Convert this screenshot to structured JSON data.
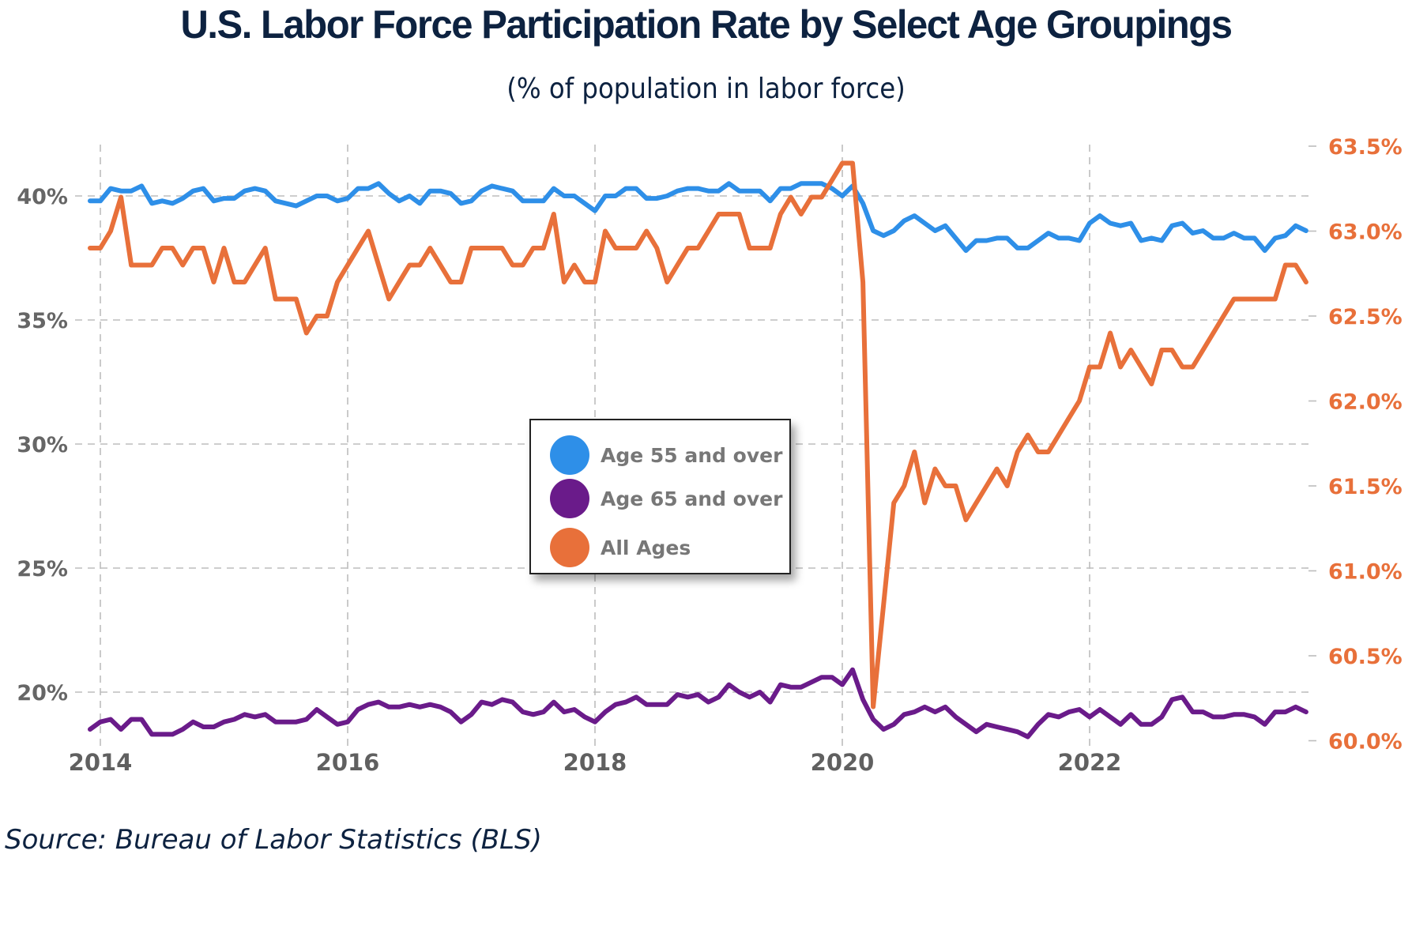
{
  "header": {
    "title": "U.S. Labor Force Participation Rate by Select Age Groupings",
    "subtitle": "(% of population in labor force)"
  },
  "footer": {
    "source": "Source: Bureau of Labor Statistics (BLS)"
  },
  "legend": [
    {
      "label": "Age 55 and over",
      "color": "#2e8fe8"
    },
    {
      "label": "Age 65 and over",
      "color": "#6a1b8a"
    },
    {
      "label": "All Ages",
      "color": "#e8703a"
    }
  ],
  "chart_data": {
    "type": "line",
    "title": "U.S. Labor Force Participation Rate by Select Age Groupings",
    "subtitle": "(% of population in labor force)",
    "xlabel": "",
    "frequency": "monthly",
    "x_start": "2013-12",
    "x_end": "2023-10",
    "x_ticks": [
      "2014",
      "2016",
      "2018",
      "2020",
      "2022"
    ],
    "y_left": {
      "label": "",
      "ticks": [
        "20%",
        "25%",
        "30%",
        "35%",
        "40%"
      ],
      "tick_values": [
        20,
        25,
        30,
        35,
        40
      ],
      "range": [
        17.8,
        42.3
      ],
      "series": [
        "Age 55 and over",
        "Age 65 and over"
      ]
    },
    "y_right": {
      "label": "",
      "ticks": [
        "60.0%",
        "60.5%",
        "61.0%",
        "61.5%",
        "62.0%",
        "62.5%",
        "63.0%",
        "63.5%"
      ],
      "tick_values": [
        60.0,
        60.5,
        61.0,
        61.5,
        62.0,
        62.5,
        63.0,
        63.5
      ],
      "range": [
        59.9,
        63.6
      ],
      "series": [
        "All Ages"
      ]
    },
    "grid": true,
    "legend_position": "center",
    "series": [
      {
        "name": "Age 55 and over",
        "axis": "left",
        "color": "#2e8fe8",
        "values": [
          39.8,
          39.8,
          40.3,
          40.2,
          40.2,
          40.4,
          39.7,
          39.8,
          39.7,
          39.9,
          40.2,
          40.3,
          39.8,
          39.9,
          39.9,
          40.2,
          40.3,
          40.2,
          39.8,
          39.7,
          39.6,
          39.8,
          40.0,
          40.0,
          39.8,
          39.9,
          40.3,
          40.3,
          40.5,
          40.1,
          39.8,
          40.0,
          39.7,
          40.2,
          40.2,
          40.1,
          39.7,
          39.8,
          40.2,
          40.4,
          40.3,
          40.2,
          39.8,
          39.8,
          39.8,
          40.3,
          40.0,
          40.0,
          39.7,
          39.4,
          40.0,
          40.0,
          40.3,
          40.3,
          39.9,
          39.9,
          40.0,
          40.2,
          40.3,
          40.3,
          40.2,
          40.2,
          40.5,
          40.2,
          40.2,
          40.2,
          39.8,
          40.3,
          40.3,
          40.5,
          40.5,
          40.5,
          40.3,
          40.0,
          40.4,
          39.7,
          38.6,
          38.4,
          38.6,
          39.0,
          39.2,
          38.9,
          38.6,
          38.8,
          38.3,
          37.8,
          38.2,
          38.2,
          38.3,
          38.3,
          37.9,
          37.9,
          38.2,
          38.5,
          38.3,
          38.3,
          38.2,
          38.9,
          39.2,
          38.9,
          38.8,
          38.9,
          38.2,
          38.3,
          38.2,
          38.8,
          38.9,
          38.5,
          38.6,
          38.3,
          38.3,
          38.5,
          38.3,
          38.3,
          37.8,
          38.3,
          38.4,
          38.8,
          38.6
        ]
      },
      {
        "name": "Age 65 and over",
        "axis": "left",
        "color": "#6a1b8a",
        "values": [
          18.5,
          18.8,
          18.9,
          18.5,
          18.9,
          18.9,
          18.3,
          18.3,
          18.3,
          18.5,
          18.8,
          18.6,
          18.6,
          18.8,
          18.9,
          19.1,
          19.0,
          19.1,
          18.8,
          18.8,
          18.8,
          18.9,
          19.3,
          19.0,
          18.7,
          18.8,
          19.3,
          19.5,
          19.6,
          19.4,
          19.4,
          19.5,
          19.4,
          19.5,
          19.4,
          19.2,
          18.8,
          19.1,
          19.6,
          19.5,
          19.7,
          19.6,
          19.2,
          19.1,
          19.2,
          19.6,
          19.2,
          19.3,
          19.0,
          18.8,
          19.2,
          19.5,
          19.6,
          19.8,
          19.5,
          19.5,
          19.5,
          19.9,
          19.8,
          19.9,
          19.6,
          19.8,
          20.3,
          20.0,
          19.8,
          20.0,
          19.6,
          20.3,
          20.2,
          20.2,
          20.4,
          20.6,
          20.6,
          20.3,
          20.9,
          19.7,
          18.9,
          18.5,
          18.7,
          19.1,
          19.2,
          19.4,
          19.2,
          19.4,
          19.0,
          18.7,
          18.4,
          18.7,
          18.6,
          18.5,
          18.4,
          18.2,
          18.7,
          19.1,
          19.0,
          19.2,
          19.3,
          19.0,
          19.3,
          19.0,
          18.7,
          19.1,
          18.7,
          18.7,
          19.0,
          19.7,
          19.8,
          19.2,
          19.2,
          19.0,
          19.0,
          19.1,
          19.1,
          19.0,
          18.7,
          19.2,
          19.2,
          19.4,
          19.2
        ]
      },
      {
        "name": "All Ages",
        "axis": "right",
        "color": "#e8703a",
        "values": [
          62.9,
          62.9,
          63.0,
          63.2,
          62.8,
          62.8,
          62.8,
          62.9,
          62.9,
          62.8,
          62.9,
          62.9,
          62.7,
          62.9,
          62.7,
          62.7,
          62.8,
          62.9,
          62.6,
          62.6,
          62.6,
          62.4,
          62.5,
          62.5,
          62.7,
          62.8,
          62.9,
          63.0,
          62.8,
          62.6,
          62.7,
          62.8,
          62.8,
          62.9,
          62.8,
          62.7,
          62.7,
          62.9,
          62.9,
          62.9,
          62.9,
          62.8,
          62.8,
          62.9,
          62.9,
          63.1,
          62.7,
          62.8,
          62.7,
          62.7,
          63.0,
          62.9,
          62.9,
          62.9,
          63.0,
          62.9,
          62.7,
          62.8,
          62.9,
          62.9,
          63.0,
          63.1,
          63.1,
          63.1,
          62.9,
          62.9,
          62.9,
          63.1,
          63.2,
          63.1,
          63.2,
          63.2,
          63.3,
          63.4,
          63.4,
          62.7,
          60.2,
          60.8,
          61.4,
          61.5,
          61.7,
          61.4,
          61.6,
          61.5,
          61.5,
          61.3,
          61.4,
          61.5,
          61.6,
          61.5,
          61.7,
          61.8,
          61.7,
          61.7,
          61.8,
          61.9,
          62.0,
          62.2,
          62.2,
          62.4,
          62.2,
          62.3,
          62.2,
          62.1,
          62.3,
          62.3,
          62.2,
          62.2,
          62.3,
          62.4,
          62.5,
          62.6,
          62.6,
          62.6,
          62.6,
          62.6,
          62.8,
          62.8,
          62.7
        ]
      }
    ]
  }
}
